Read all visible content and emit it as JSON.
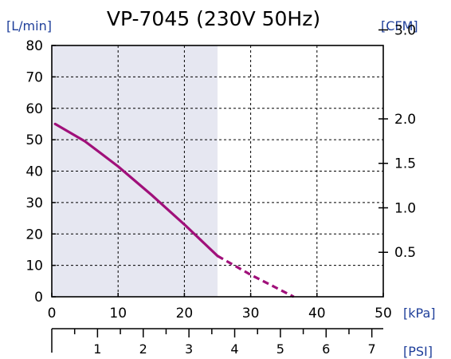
{
  "chart_data": {
    "type": "line",
    "title": "VP-7045 (230V 50Hz)",
    "x_unit": "[kPa]",
    "x2_unit": "[PSI]",
    "y_unit": "[L/min]",
    "y2_unit": "[CFM]",
    "xlim": [
      0,
      50
    ],
    "ylim": [
      0,
      80
    ],
    "x2lim": [
      0,
      7.25
    ],
    "y2lim": [
      0,
      2.825
    ],
    "x_ticks": [
      0,
      10,
      20,
      30,
      40,
      50
    ],
    "y_ticks": [
      0,
      10,
      20,
      30,
      40,
      50,
      60,
      70,
      80
    ],
    "x2_ticks": [
      1,
      2,
      3,
      4,
      5,
      6,
      7
    ],
    "x2_minor_ticks": [
      0.5,
      1.5,
      2.5,
      3.5,
      4.5,
      5.5,
      6.5
    ],
    "y2_ticks": [
      0.5,
      1.0,
      1.5,
      2.0,
      3.0
    ],
    "y2_tick_labels": [
      "0.5",
      "1.0",
      "1.5",
      "2.0",
      "3.0"
    ],
    "grid": true,
    "shaded_region_x": [
      0,
      25
    ],
    "colors": {
      "curve": "#a0107a",
      "shade": "#e6e7f1",
      "unit_text": "#1f3f9a"
    },
    "series": [
      {
        "style": "solid",
        "x": [
          0.5,
          5,
          10,
          15,
          20,
          25
        ],
        "y": [
          55,
          49.5,
          41.5,
          32.5,
          23,
          13
        ]
      },
      {
        "style": "dashed",
        "x": [
          25,
          30,
          36.5
        ],
        "y": [
          13,
          7,
          0
        ]
      }
    ]
  }
}
